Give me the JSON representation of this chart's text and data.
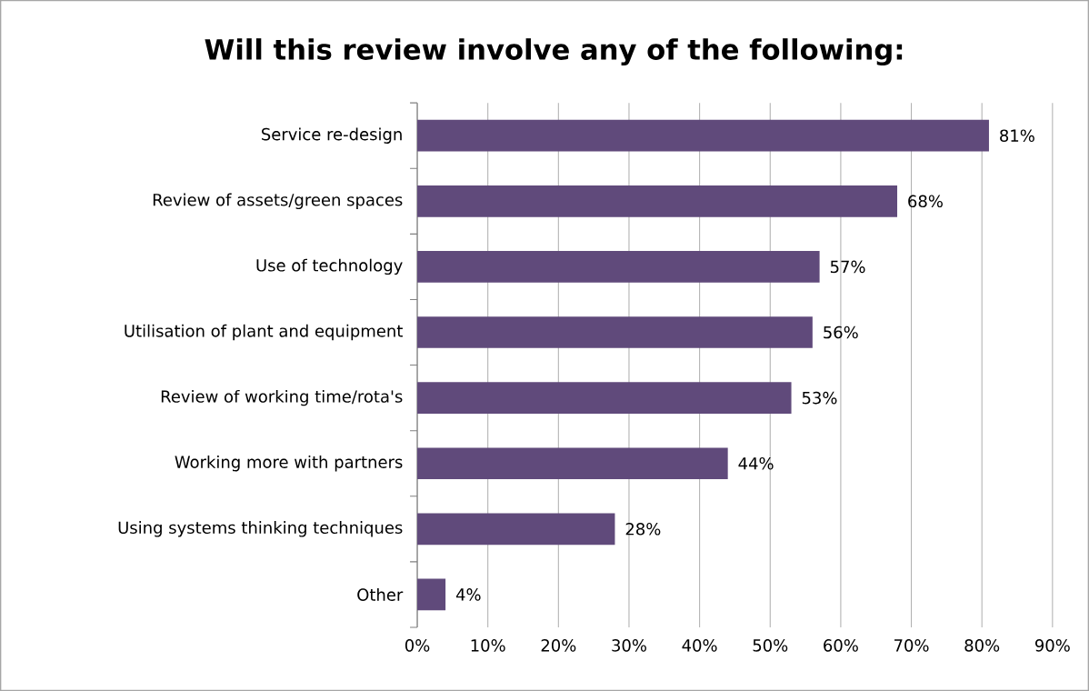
{
  "chart_data": {
    "type": "bar",
    "orientation": "horizontal",
    "title": "Will this review involve any of the following:",
    "categories": [
      "Service re-design",
      "Review of assets/green spaces",
      "Use of technology",
      "Utilisation of plant and equipment",
      "Review of working time/rota's",
      "Working more with partners",
      "Using systems thinking techniques",
      "Other"
    ],
    "values": [
      81,
      68,
      57,
      56,
      53,
      44,
      28,
      4
    ],
    "value_labels": [
      "81%",
      "68%",
      "57%",
      "56%",
      "53%",
      "44%",
      "28%",
      "4%"
    ],
    "color": "#604a7b",
    "xlim": [
      0,
      90
    ],
    "xticks": [
      {
        "value": 0,
        "label": "0%"
      },
      {
        "value": 10,
        "label": "10%"
      },
      {
        "value": 20,
        "label": "20%"
      },
      {
        "value": 30,
        "label": "30%"
      },
      {
        "value": 40,
        "label": "40%"
      },
      {
        "value": 50,
        "label": "50%"
      },
      {
        "value": 60,
        "label": "60%"
      },
      {
        "value": 70,
        "label": "70%"
      },
      {
        "value": 80,
        "label": "80%"
      },
      {
        "value": 90,
        "label": "90%"
      }
    ],
    "grid": "x",
    "legend": false
  }
}
